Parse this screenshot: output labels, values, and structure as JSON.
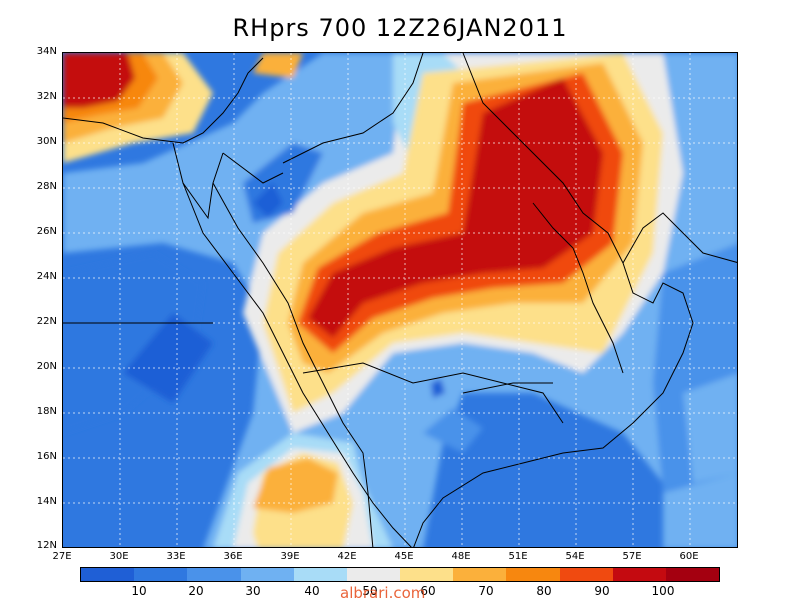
{
  "title": "RHprs 700  12Z26JAN2011",
  "lat_labels": [
    "34N",
    "32N",
    "30N",
    "28N",
    "26N",
    "24N",
    "22N",
    "20N",
    "18N",
    "16N",
    "14N",
    "12N"
  ],
  "lon_labels": [
    "27E",
    "30E",
    "33E",
    "36E",
    "39E",
    "42E",
    "45E",
    "48E",
    "51E",
    "54E",
    "57E",
    "60E"
  ],
  "colorbar": {
    "colors": [
      "#1f5fd6",
      "#2f78e0",
      "#4a92ea",
      "#6fb1f2",
      "#a8dcf7",
      "#ebebeb",
      "#fde08a",
      "#fbb03b",
      "#f7870f",
      "#f04a10",
      "#c40a10",
      "#a40010"
    ],
    "labels": [
      "10",
      "20",
      "30",
      "40",
      "50",
      "60",
      "70",
      "80",
      "90",
      "100"
    ]
  },
  "watermark": "albrari.com"
}
